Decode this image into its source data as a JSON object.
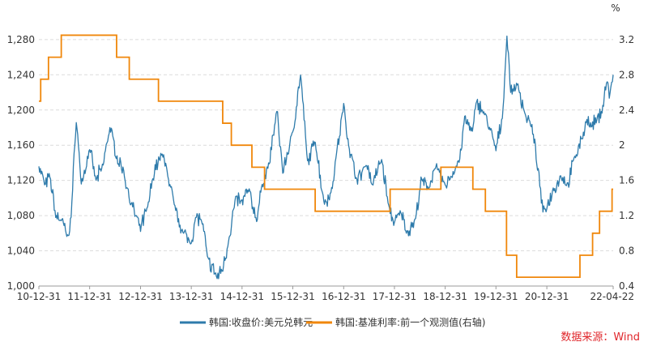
{
  "chart_data": {
    "type": "line",
    "y_left": {
      "range": [
        1000,
        1290
      ],
      "ticks": [
        "1,000",
        "1,040",
        "1,080",
        "1,120",
        "1,160",
        "1,200",
        "1,240",
        "1,280"
      ],
      "tick_values": [
        1000,
        1040,
        1080,
        1120,
        1160,
        1200,
        1240,
        1280
      ]
    },
    "y_right": {
      "unit": "%",
      "range": [
        0.4,
        3.3
      ],
      "ticks": [
        "0.4",
        "0.8",
        "1.2",
        "1.6",
        "2",
        "2.4",
        "2.8",
        "3.2"
      ],
      "tick_values": [
        0.4,
        0.8,
        1.2,
        1.6,
        2.0,
        2.4,
        2.8,
        3.2
      ]
    },
    "x_ticks": [
      "10-12-31",
      "11-12-31",
      "12-12-31",
      "13-12-31",
      "14-12-31",
      "15-12-31",
      "16-12-31",
      "17-12-31",
      "18-12-31",
      "19-12-31",
      "20-12-31",
      "22-04-22"
    ],
    "x_tick_dates": [
      "2010-12-31",
      "2011-12-31",
      "2012-12-31",
      "2013-12-31",
      "2014-12-31",
      "2015-12-31",
      "2016-12-31",
      "2017-12-31",
      "2018-12-31",
      "2019-12-31",
      "2020-12-31",
      "2022-04-22"
    ],
    "grid": "horizontal-dashed",
    "legend_position": "bottom",
    "series": [
      {
        "name": "韩国:收盘价:美元兑韩元",
        "axis": "left",
        "color": "#2e7bab",
        "points": [
          [
            "2010-12-31",
            1135
          ],
          [
            "2011-02-15",
            1115
          ],
          [
            "2011-03-20",
            1125
          ],
          [
            "2011-05-01",
            1080
          ],
          [
            "2011-06-15",
            1075
          ],
          [
            "2011-07-25",
            1055
          ],
          [
            "2011-08-20",
            1080
          ],
          [
            "2011-09-26",
            1190
          ],
          [
            "2011-11-01",
            1115
          ],
          [
            "2011-12-31",
            1155
          ],
          [
            "2012-02-15",
            1120
          ],
          [
            "2012-04-01",
            1135
          ],
          [
            "2012-05-25",
            1180
          ],
          [
            "2012-07-15",
            1145
          ],
          [
            "2012-09-01",
            1130
          ],
          [
            "2012-10-20",
            1095
          ],
          [
            "2012-12-31",
            1065
          ],
          [
            "2013-02-20",
            1090
          ],
          [
            "2013-04-15",
            1135
          ],
          [
            "2013-06-15",
            1150
          ],
          [
            "2013-07-25",
            1115
          ],
          [
            "2013-09-15",
            1085
          ],
          [
            "2013-11-01",
            1060
          ],
          [
            "2013-12-31",
            1050
          ],
          [
            "2014-02-05",
            1080
          ],
          [
            "2014-03-15",
            1075
          ],
          [
            "2014-05-01",
            1030
          ],
          [
            "2014-07-05",
            1010
          ],
          [
            "2014-08-15",
            1020
          ],
          [
            "2014-09-30",
            1055
          ],
          [
            "2014-11-15",
            1100
          ],
          [
            "2014-12-31",
            1095
          ],
          [
            "2015-02-15",
            1110
          ],
          [
            "2015-04-15",
            1075
          ],
          [
            "2015-05-25",
            1115
          ],
          [
            "2015-07-15",
            1140
          ],
          [
            "2015-09-07",
            1200
          ],
          [
            "2015-10-20",
            1130
          ],
          [
            "2015-12-31",
            1175
          ],
          [
            "2016-02-25",
            1240
          ],
          [
            "2016-04-15",
            1140
          ],
          [
            "2016-06-10",
            1165
          ],
          [
            "2016-08-10",
            1095
          ],
          [
            "2016-09-30",
            1105
          ],
          [
            "2016-11-10",
            1150
          ],
          [
            "2016-12-31",
            1205
          ],
          [
            "2017-02-15",
            1150
          ],
          [
            "2017-04-10",
            1120
          ],
          [
            "2017-06-15",
            1140
          ],
          [
            "2017-07-25",
            1115
          ],
          [
            "2017-09-30",
            1145
          ],
          [
            "2017-11-20",
            1090
          ],
          [
            "2017-12-31",
            1070
          ],
          [
            "2018-02-15",
            1085
          ],
          [
            "2018-04-01",
            1060
          ],
          [
            "2018-06-01",
            1075
          ],
          [
            "2018-07-10",
            1120
          ],
          [
            "2018-09-01",
            1110
          ],
          [
            "2018-10-15",
            1135
          ],
          [
            "2018-12-31",
            1115
          ],
          [
            "2019-02-15",
            1125
          ],
          [
            "2019-04-15",
            1145
          ],
          [
            "2019-05-20",
            1190
          ],
          [
            "2019-07-15",
            1175
          ],
          [
            "2019-08-15",
            1210
          ],
          [
            "2019-10-15",
            1195
          ],
          [
            "2019-12-31",
            1155
          ],
          [
            "2020-02-15",
            1190
          ],
          [
            "2020-03-19",
            1285
          ],
          [
            "2020-04-15",
            1220
          ],
          [
            "2020-06-01",
            1230
          ],
          [
            "2020-07-30",
            1195
          ],
          [
            "2020-09-15",
            1180
          ],
          [
            "2020-10-30",
            1130
          ],
          [
            "2020-12-03",
            1085
          ],
          [
            "2020-12-31",
            1090
          ],
          [
            "2021-02-15",
            1110
          ],
          [
            "2021-04-15",
            1125
          ],
          [
            "2021-06-01",
            1115
          ],
          [
            "2021-07-15",
            1145
          ],
          [
            "2021-09-15",
            1170
          ],
          [
            "2021-10-15",
            1190
          ],
          [
            "2021-11-15",
            1180
          ],
          [
            "2021-12-31",
            1190
          ],
          [
            "2022-02-01",
            1200
          ],
          [
            "2022-03-10",
            1235
          ],
          [
            "2022-03-25",
            1215
          ],
          [
            "2022-04-22",
            1240
          ]
        ]
      },
      {
        "name": "韩国:基准利率:前一个观测值(右轴)",
        "axis": "right",
        "color": "#f0870b",
        "steps": [
          [
            "2010-12-31",
            2.5
          ],
          [
            "2011-01-13",
            2.75
          ],
          [
            "2011-03-10",
            3.0
          ],
          [
            "2011-06-10",
            3.25
          ],
          [
            "2012-07-12",
            3.0
          ],
          [
            "2012-10-11",
            2.75
          ],
          [
            "2013-05-09",
            2.5
          ],
          [
            "2014-08-14",
            2.25
          ],
          [
            "2014-10-15",
            2.0
          ],
          [
            "2015-03-12",
            1.75
          ],
          [
            "2015-06-11",
            1.5
          ],
          [
            "2016-06-09",
            1.25
          ],
          [
            "2017-11-30",
            1.5
          ],
          [
            "2018-11-30",
            1.75
          ],
          [
            "2019-07-18",
            1.5
          ],
          [
            "2019-10-16",
            1.25
          ],
          [
            "2020-03-16",
            0.75
          ],
          [
            "2020-05-28",
            0.5
          ],
          [
            "2021-08-26",
            0.75
          ],
          [
            "2021-11-25",
            1.0
          ],
          [
            "2022-01-14",
            1.25
          ],
          [
            "2022-04-14",
            1.5
          ],
          [
            "2022-04-22",
            1.5
          ]
        ]
      }
    ]
  },
  "legend": {
    "series1": "韩国:收盘价:美元兑韩元",
    "series2": "韩国:基准利率:前一个观测值(右轴)"
  },
  "right_axis_unit": "%",
  "source": "数据来源：Wind"
}
